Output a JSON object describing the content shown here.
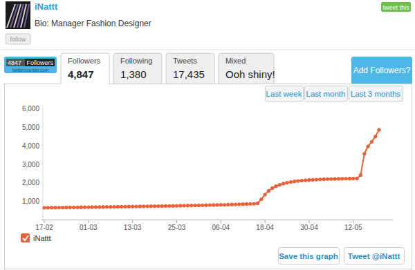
{
  "page": {
    "profile": {
      "name": "iNattt",
      "bio": "Bio: Manager Fashion Designer",
      "follow_button": "follow",
      "tweet_button": "tweet this"
    },
    "badge": {
      "count": "4847",
      "label": "Followers",
      "site": "twittercounter.com"
    },
    "tabs": [
      {
        "label": "Followers",
        "value": "4,847"
      },
      {
        "label": "Following",
        "value": "1,380"
      },
      {
        "label": "Tweets",
        "value": "17,435"
      },
      {
        "label": "Mixed",
        "value": "Ooh shiny!"
      }
    ],
    "add_button": "Add Followers?",
    "range_buttons": [
      "Last week",
      "Last month",
      "Last 3 months"
    ],
    "actions": [
      "Save this graph",
      "Tweet @iNattt"
    ]
  },
  "chart_data": {
    "type": "line",
    "categories": [
      "17-02",
      null,
      null,
      null,
      null,
      null,
      null,
      null,
      null,
      null,
      null,
      null,
      "01-03",
      null,
      null,
      null,
      null,
      null,
      null,
      null,
      null,
      null,
      null,
      null,
      "13-03",
      null,
      null,
      null,
      null,
      null,
      null,
      null,
      null,
      null,
      null,
      null,
      "25-03",
      null,
      null,
      null,
      null,
      null,
      null,
      null,
      null,
      null,
      null,
      null,
      "06-04",
      null,
      null,
      null,
      null,
      null,
      null,
      null,
      null,
      null,
      null,
      null,
      "18-04",
      null,
      null,
      null,
      null,
      null,
      null,
      null,
      null,
      null,
      null,
      null,
      "30-04",
      null,
      null,
      null,
      null,
      null,
      null,
      null,
      null,
      null,
      null,
      null,
      "12-05",
      null,
      null,
      null,
      null,
      null,
      null,
      null
    ],
    "series": [
      {
        "name": "iNattt",
        "color": "#e8613b",
        "marker": "circle",
        "values": [
          640,
          642,
          645,
          647,
          650,
          652,
          655,
          657,
          660,
          662,
          665,
          668,
          670,
          673,
          676,
          679,
          682,
          685,
          688,
          690,
          693,
          696,
          699,
          702,
          705,
          708,
          711,
          714,
          717,
          720,
          723,
          726,
          730,
          733,
          736,
          740,
          744,
          748,
          752,
          756,
          760,
          764,
          768,
          772,
          777,
          782,
          787,
          792,
          797,
          802,
          808,
          814,
          820,
          826,
          833,
          840,
          848,
          856,
          880,
          1100,
          1350,
          1550,
          1700,
          1800,
          1880,
          1940,
          1990,
          2030,
          2060,
          2085,
          2105,
          2120,
          2135,
          2150,
          2160,
          2170,
          2178,
          2185,
          2190,
          2195,
          2200,
          2205,
          2208,
          2212,
          2215,
          2220,
          2400,
          3550,
          3950,
          4200,
          4480,
          4847
        ]
      }
    ],
    "ylim": [
      0,
      6000
    ],
    "yticks": [
      {
        "value": 1000,
        "label": "1,000"
      },
      {
        "value": 2000,
        "label": "2,000"
      },
      {
        "value": 3000,
        "label": "3,000"
      },
      {
        "value": 4000,
        "label": "4,000"
      },
      {
        "value": 5000,
        "label": "5,000"
      },
      {
        "value": 6000,
        "label": "6,000"
      }
    ],
    "grid": false,
    "legend": "bottom-left"
  }
}
